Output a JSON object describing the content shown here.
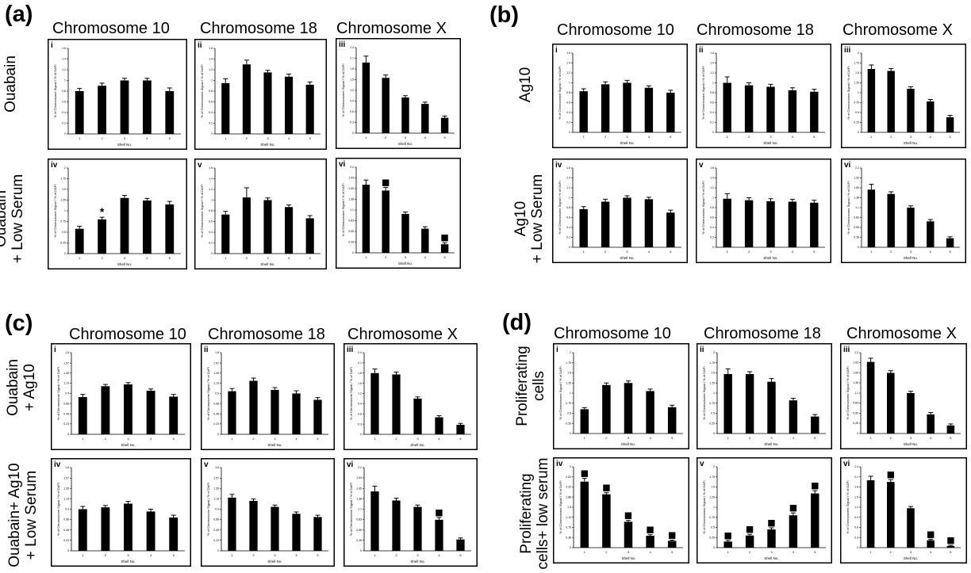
{
  "panels": [
    {
      "letter": "(a)",
      "titles": [
        "Chromosome 10",
        "Chromosome 18",
        "Chromosome X"
      ],
      "rows": [
        [
          "Ouabain"
        ],
        [
          "Ouabain",
          "+ Low Serum"
        ]
      ]
    },
    {
      "letter": "(b)",
      "titles": [
        "Chromosome 10",
        "Chromosome 18",
        "Chromosome X"
      ],
      "rows": [
        [
          "Ag10"
        ],
        [
          "Ag10",
          "+ Low Serum"
        ]
      ]
    },
    {
      "letter": "(c)",
      "titles": [
        "Chromosome 10",
        "Chromosome 18",
        "Chromosome X"
      ],
      "rows": [
        [
          "Ouabain",
          "+ Ag10"
        ],
        [
          "Ouabain+ Ag10",
          "+ Low Serum"
        ]
      ]
    },
    {
      "letter": "(d)",
      "titles": [
        "Chromosome 10",
        "Chromosome 18",
        "Chromosome X"
      ],
      "rows": [
        [
          "Proliferating",
          "cells"
        ],
        [
          "Proliferating",
          "cells+ low serum"
        ]
      ]
    }
  ],
  "chart_data": [
    {
      "type": "bar",
      "panel": "a",
      "roman": "i",
      "categories": [
        "1",
        "2",
        "3",
        "4",
        "5"
      ],
      "values": [
        0.8,
        0.9,
        1.0,
        1.0,
        0.8
      ],
      "errors": [
        0.05,
        0.05,
        0.04,
        0.04,
        0.06
      ],
      "ylim": [
        0,
        1.6
      ],
      "xlabel": "Shell No.",
      "ylabel": "% of Chromosome Signal / % of DAPI",
      "markers": []
    },
    {
      "type": "bar",
      "panel": "a",
      "roman": "ii",
      "categories": [
        "1",
        "2",
        "3",
        "4",
        "5"
      ],
      "values": [
        0.95,
        1.3,
        1.15,
        1.07,
        0.92
      ],
      "errors": [
        0.08,
        0.08,
        0.04,
        0.05,
        0.05
      ],
      "ylim": [
        0,
        1.6
      ],
      "xlabel": "Shell No.",
      "ylabel": "% of Chromosome Signal / % of DAPI",
      "markers": []
    },
    {
      "type": "bar",
      "panel": "a",
      "roman": "iii",
      "categories": [
        "1",
        "2",
        "3",
        "4",
        "5"
      ],
      "values": [
        1.98,
        1.55,
        1.0,
        0.82,
        0.43
      ],
      "errors": [
        0.18,
        0.08,
        0.05,
        0.05,
        0.05
      ],
      "ylim": [
        0,
        2.4
      ],
      "xlabel": "Shell No.",
      "ylabel": "% of Chromosome Signal / % of DAPI",
      "markers": []
    },
    {
      "type": "bar",
      "panel": "a",
      "roman": "iv",
      "categories": [
        "1",
        "2",
        "3",
        "4",
        "5"
      ],
      "values": [
        0.58,
        0.8,
        1.3,
        1.24,
        1.15
      ],
      "errors": [
        0.06,
        0.05,
        0.06,
        0.05,
        0.07
      ],
      "ylim": [
        0,
        2.0
      ],
      "xlabel": "Shell No.",
      "ylabel": "% of Chromosome Signal / % of DAPI",
      "markers": [
        {
          "bar": 2,
          "symbol": "*"
        }
      ]
    },
    {
      "type": "bar",
      "panel": "a",
      "roman": "v",
      "categories": [
        "1",
        "2",
        "3",
        "4",
        "5"
      ],
      "values": [
        0.73,
        1.05,
        1.0,
        0.87,
        0.66
      ],
      "errors": [
        0.06,
        0.18,
        0.04,
        0.04,
        0.05
      ],
      "ylim": [
        0,
        1.6
      ],
      "xlabel": "Shell No.",
      "ylabel": "% of Chromosome Signal / % of DAPI",
      "markers": []
    },
    {
      "type": "bar",
      "panel": "a",
      "roman": "vi",
      "categories": [
        "1",
        "2",
        "3",
        "4",
        "5"
      ],
      "values": [
        1.75,
        1.6,
        1.0,
        0.62,
        0.22
      ],
      "errors": [
        0.12,
        0.08,
        0.05,
        0.05,
        0.04
      ],
      "ylim": [
        0,
        2.2
      ],
      "xlabel": "Shell No.",
      "ylabel": "% of Chromosome Signal / % of DAPI",
      "markers": [
        {
          "bar": 2,
          "symbol": "■"
        },
        {
          "bar": 5,
          "symbol": "■"
        }
      ]
    },
    {
      "type": "bar",
      "panel": "b",
      "roman": "i",
      "categories": [
        "1",
        "2",
        "3",
        "4",
        "5"
      ],
      "values": [
        0.83,
        0.97,
        1.0,
        0.9,
        0.8
      ],
      "errors": [
        0.05,
        0.05,
        0.05,
        0.04,
        0.05
      ],
      "ylim": [
        0,
        1.6
      ],
      "xlabel": "Shell No.",
      "ylabel": "% of Chromosome Signal / % of DAPI",
      "markers": []
    },
    {
      "type": "bar",
      "panel": "b",
      "roman": "ii",
      "categories": [
        "1",
        "2",
        "3",
        "4",
        "5"
      ],
      "values": [
        1.0,
        0.95,
        0.92,
        0.85,
        0.82
      ],
      "errors": [
        0.12,
        0.05,
        0.05,
        0.05,
        0.05
      ],
      "ylim": [
        0,
        1.6
      ],
      "xlabel": "Shell No.",
      "ylabel": "% of Chromosome Signal / % of DAPI",
      "markers": []
    },
    {
      "type": "bar",
      "panel": "b",
      "roman": "iii",
      "categories": [
        "1",
        "2",
        "3",
        "4",
        "5"
      ],
      "values": [
        1.6,
        1.55,
        1.1,
        0.78,
        0.38
      ],
      "errors": [
        0.1,
        0.06,
        0.05,
        0.05,
        0.05
      ],
      "ylim": [
        0,
        2.0
      ],
      "xlabel": "Shell No.",
      "ylabel": "% of Chromosome Signal / % of DAPI",
      "markers": []
    },
    {
      "type": "bar",
      "panel": "b",
      "roman": "iv",
      "categories": [
        "1",
        "2",
        "3",
        "4",
        "5"
      ],
      "values": [
        0.77,
        0.92,
        1.0,
        0.97,
        0.7
      ],
      "errors": [
        0.05,
        0.05,
        0.04,
        0.04,
        0.05
      ],
      "ylim": [
        0,
        1.6
      ],
      "xlabel": "Shell No.",
      "ylabel": "% of Chromosome Signal / % of DAPI",
      "markers": []
    },
    {
      "type": "bar",
      "panel": "b",
      "roman": "v",
      "categories": [
        "1",
        "2",
        "3",
        "4",
        "5"
      ],
      "values": [
        0.98,
        0.95,
        0.93,
        0.92,
        0.9
      ],
      "errors": [
        0.1,
        0.05,
        0.05,
        0.05,
        0.05
      ],
      "ylim": [
        0,
        1.6
      ],
      "xlabel": "Shell No.",
      "ylabel": "% of Chromosome Signal / % of DAPI",
      "markers": []
    },
    {
      "type": "bar",
      "panel": "b",
      "roman": "vi",
      "categories": [
        "1",
        "2",
        "3",
        "4",
        "5"
      ],
      "values": [
        1.6,
        1.48,
        1.1,
        0.72,
        0.25
      ],
      "errors": [
        0.15,
        0.06,
        0.05,
        0.05,
        0.04
      ],
      "ylim": [
        0,
        2.2
      ],
      "xlabel": "Shell No.",
      "ylabel": "% of Chromosome Signal / % of DAPI",
      "markers": []
    },
    {
      "type": "bar",
      "panel": "c",
      "roman": "i",
      "categories": [
        "1",
        "2",
        "3",
        "4",
        "5"
      ],
      "values": [
        0.82,
        1.06,
        1.1,
        0.96,
        0.83
      ],
      "errors": [
        0.06,
        0.04,
        0.04,
        0.04,
        0.05
      ],
      "ylim": [
        0,
        1.8
      ],
      "xlabel": "Shell No.",
      "ylabel": "% of Chromosome Signal / % of DAPI",
      "markers": []
    },
    {
      "type": "bar",
      "panel": "c",
      "roman": "ii",
      "categories": [
        "1",
        "2",
        "3",
        "4",
        "5"
      ],
      "values": [
        0.95,
        1.18,
        0.98,
        0.9,
        0.76
      ],
      "errors": [
        0.06,
        0.06,
        0.05,
        0.06,
        0.05
      ],
      "ylim": [
        0,
        1.8
      ],
      "xlabel": "Shell No.",
      "ylabel": "% of Chromosome Signal / % of DAPI",
      "markers": []
    },
    {
      "type": "bar",
      "panel": "c",
      "roman": "iii",
      "categories": [
        "1",
        "2",
        "3",
        "4",
        "5"
      ],
      "values": [
        1.8,
        1.76,
        1.05,
        0.5,
        0.28
      ],
      "errors": [
        0.12,
        0.07,
        0.05,
        0.05,
        0.04
      ],
      "ylim": [
        0,
        2.4
      ],
      "xlabel": "Shell No.",
      "ylabel": "% of Chromosome Signal / % of DAPI",
      "markers": []
    },
    {
      "type": "bar",
      "panel": "c",
      "roman": "iv",
      "categories": [
        "1",
        "2",
        "3",
        "4",
        "5"
      ],
      "values": [
        0.9,
        0.94,
        1.02,
        0.85,
        0.72
      ],
      "errors": [
        0.06,
        0.04,
        0.05,
        0.05,
        0.05
      ],
      "ylim": [
        0,
        1.8
      ],
      "xlabel": "Shell No.",
      "ylabel": "% of Chromosome Signal / % of DAPI",
      "markers": []
    },
    {
      "type": "bar",
      "panel": "c",
      "roman": "v",
      "categories": [
        "1",
        "2",
        "3",
        "4",
        "5"
      ],
      "values": [
        1.15,
        1.08,
        0.95,
        0.8,
        0.73
      ],
      "errors": [
        0.07,
        0.04,
        0.04,
        0.04,
        0.04
      ],
      "ylim": [
        0,
        1.8
      ],
      "xlabel": "Shell No.",
      "ylabel": "% of Chromosome Signal / % of DAPI",
      "markers": []
    },
    {
      "type": "bar",
      "panel": "c",
      "roman": "vi",
      "categories": [
        "1",
        "2",
        "3",
        "4",
        "5"
      ],
      "values": [
        1.57,
        1.33,
        1.16,
        0.82,
        0.3
      ],
      "errors": [
        0.14,
        0.06,
        0.05,
        0.06,
        0.04
      ],
      "ylim": [
        0,
        2.2
      ],
      "xlabel": "Shell No.",
      "ylabel": "% of Chromosome Signal / % of DAPI",
      "markers": [
        {
          "bar": 4,
          "symbol": "■"
        }
      ]
    },
    {
      "type": "bar",
      "panel": "d",
      "roman": "i",
      "categories": [
        "1",
        "2",
        "3",
        "4",
        "5"
      ],
      "values": [
        0.6,
        1.2,
        1.25,
        1.05,
        0.65
      ],
      "errors": [
        0.04,
        0.05,
        0.05,
        0.05,
        0.05
      ],
      "ylim": [
        0,
        2.0
      ],
      "xlabel": "Shell No.",
      "ylabel": "% of Chromosome Signal / % of DAPI",
      "markers": []
    },
    {
      "type": "bar",
      "panel": "d",
      "roman": "ii",
      "categories": [
        "1",
        "2",
        "3",
        "4",
        "5"
      ],
      "values": [
        1.47,
        1.47,
        1.28,
        0.82,
        0.42
      ],
      "errors": [
        0.13,
        0.06,
        0.08,
        0.05,
        0.05
      ],
      "ylim": [
        0,
        2.0
      ],
      "xlabel": "Shell No.",
      "ylabel": "% of Chromosome Signal / % of DAPI",
      "markers": []
    },
    {
      "type": "bar",
      "panel": "d",
      "roman": "iii",
      "categories": [
        "1",
        "2",
        "3",
        "4",
        "5"
      ],
      "values": [
        1.95,
        1.65,
        1.1,
        0.52,
        0.22
      ],
      "errors": [
        0.1,
        0.06,
        0.05,
        0.05,
        0.04
      ],
      "ylim": [
        0,
        2.2
      ],
      "xlabel": "Shell No.",
      "ylabel": "% of Chromosome Signal / % of DAPI",
      "markers": []
    },
    {
      "type": "bar",
      "panel": "d",
      "roman": "iv",
      "categories": [
        "1",
        "2",
        "3",
        "4",
        "5"
      ],
      "values": [
        2.45,
        1.98,
        0.96,
        0.44,
        0.25
      ],
      "errors": [
        0.12,
        0.06,
        0.05,
        0.04,
        0.03
      ],
      "ylim": [
        0,
        3.0
      ],
      "xlabel": "Shell No",
      "ylabel": "% of Chromosome Signal / % of DAPI",
      "markers": [
        {
          "bar": 1,
          "symbol": "■"
        },
        {
          "bar": 2,
          "symbol": "■"
        },
        {
          "bar": 3,
          "symbol": "■"
        },
        {
          "bar": 4,
          "symbol": "■"
        },
        {
          "bar": 5,
          "symbol": "■"
        }
      ]
    },
    {
      "type": "bar",
      "panel": "d",
      "roman": "v",
      "categories": [
        "1",
        "2",
        "3",
        "4",
        "5"
      ],
      "values": [
        0.15,
        0.3,
        0.45,
        0.8,
        1.34
      ],
      "errors": [
        0.03,
        0.03,
        0.04,
        0.06,
        0.07
      ],
      "ylim": [
        0,
        2.0
      ],
      "xlabel": "Shell No.",
      "ylabel": "% of Chromosome Signal / % of DAPI",
      "markers": [
        {
          "bar": 1,
          "symbol": "■"
        },
        {
          "bar": 2,
          "symbol": "■"
        },
        {
          "bar": 3,
          "symbol": "■"
        },
        {
          "bar": 4,
          "symbol": "■"
        },
        {
          "bar": 5,
          "symbol": "■"
        }
      ]
    },
    {
      "type": "bar",
      "panel": "d",
      "roman": "vi",
      "categories": [
        "1",
        "2",
        "3",
        "4",
        "5"
      ],
      "values": [
        2.0,
        1.95,
        1.17,
        0.22,
        0.05
      ],
      "errors": [
        0.12,
        0.07,
        0.05,
        0.03,
        0.02
      ],
      "ylim": [
        0,
        2.4
      ],
      "xlabel": "Shell No.",
      "ylabel": "% of Chromosome Signal / % of DAPI",
      "markers": [
        {
          "bar": 2,
          "symbol": "■"
        },
        {
          "bar": 4,
          "symbol": "■"
        },
        {
          "bar": 5,
          "symbol": "■"
        }
      ]
    }
  ]
}
